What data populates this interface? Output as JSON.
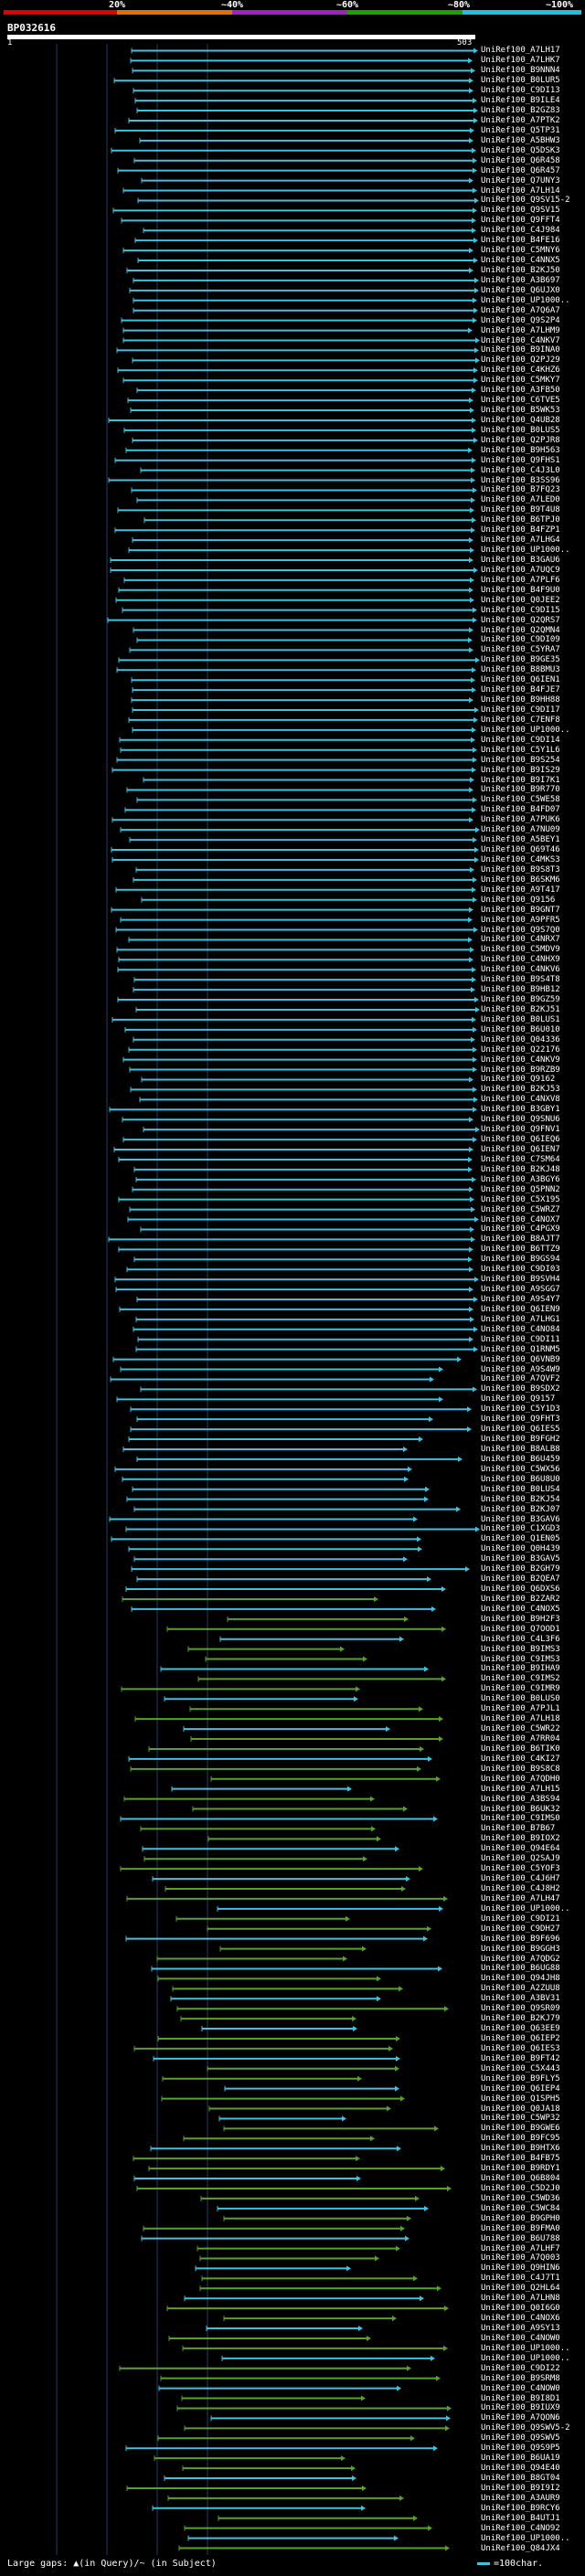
{
  "scale_bar": {
    "ticks": [
      "20%",
      "~40%",
      "~60%",
      "~80%",
      "~100%"
    ],
    "colors": [
      "#e00000",
      "#e07000",
      "#a020c0",
      "#20a000",
      "#20c0e0"
    ]
  },
  "query": {
    "id": "BP032616",
    "start": "1",
    "end": "503"
  },
  "colors": {
    "cyan": "#3fc1e0",
    "green": "#5aa02c",
    "grid": "#2a3a6a",
    "gap": "#ffff66"
  },
  "hits": [
    "UniRef100_A7LH17",
    "UniRef100_A7LHK7",
    "UniRef100_B9NNN4",
    "UniRef100_B0LUR5",
    "UniRef100_C9DI13",
    "UniRef100_B9ILE4",
    "UniRef100_B2GZ83",
    "UniRef100_A7PTK2",
    "UniRef100_Q5TP31",
    "UniRef100_A5BHW3",
    "UniRef100_Q5DSK3",
    "UniRef100_Q6R458",
    "UniRef100_Q6R457",
    "UniRef100_Q7UNY3",
    "UniRef100_A7LH14",
    "UniRef100_Q9SV15-2",
    "UniRef100_Q9SV15",
    "UniRef100_Q9FFT4",
    "UniRef100_C4J984",
    "UniRef100_B4FE16",
    "UniRef100_C5MNY6",
    "UniRef100_C4NNX5",
    "UniRef100_B2KJ50",
    "UniRef100_A3B697",
    "UniRef100_Q6UJX0",
    "UniRef100_UP1000..",
    "UniRef100_A7Q6A7",
    "UniRef100_Q9S2P4",
    "UniRef100_A7LHM9",
    "UniRef100_C4NKV7",
    "UniRef100_B9INA0",
    "UniRef100_Q2PJ29",
    "UniRef100_C4KHZ6",
    "UniRef100_C5MKY7",
    "UniRef100_A3FB50",
    "UniRef100_C6TVE5",
    "UniRef100_B5WK53",
    "UniRef100_Q4UB28",
    "UniRef100_B0LUS5",
    "UniRef100_Q2PJR8",
    "UniRef100_B9H563",
    "UniRef100_Q9FHS1",
    "UniRef100_C4J3L0",
    "UniRef100_B3SS96",
    "UniRef100_B7FQ23",
    "UniRef100_A7LED0",
    "UniRef100_B9T4U8",
    "UniRef100_B6TPJ0",
    "UniRef100_B4FZP1",
    "UniRef100_A7LHG4",
    "UniRef100_UP1000..",
    "UniRef100_B3GAU6",
    "UniRef100_A7UQC9",
    "UniRef100_A7PLF6",
    "UniRef100_B4F9U0",
    "UniRef100_Q0JEE2",
    "UniRef100_C9DI15",
    "UniRef100_Q2QRS7",
    "UniRef100_Q2QMN4",
    "UniRef100_C9DI09",
    "UniRef100_C5YRA7",
    "UniRef100_B9GE35",
    "UniRef100_B8BMU3",
    "UniRef100_Q6IEN1",
    "UniRef100_B4FJE7",
    "UniRef100_B9HH88",
    "UniRef100_C9DI17",
    "UniRef100_C7ENF8",
    "UniRef100_UP1000..",
    "UniRef100_C9DI14",
    "UniRef100_C5Y1L6",
    "UniRef100_B9S254",
    "UniRef100_B9IS29",
    "UniRef100_B9I7K1",
    "UniRef100_B9R770",
    "UniRef100_C5WE58",
    "UniRef100_B4FD07",
    "UniRef100_A7PUK6",
    "UniRef100_A7NU09",
    "UniRef100_A5BEY1",
    "UniRef100_Q69T46",
    "UniRef100_C4MKS3",
    "UniRef100_B9S8T3",
    "UniRef100_B6SKM6",
    "UniRef100_A9T417",
    "UniRef100_Q9156",
    "UniRef100_B9GNT7",
    "UniRef100_A9PFR5",
    "UniRef100_Q9S7Q0",
    "UniRef100_C4NRX7",
    "UniRef100_C5MDV9",
    "UniRef100_C4NHX9",
    "UniRef100_C4NKV6",
    "UniRef100_B9S4T8",
    "UniRef100_B9HB12",
    "UniRef100_B9GZ59",
    "UniRef100_B2KJ51",
    "UniRef100_B0LUS1",
    "UniRef100_B6U010",
    "UniRef100_Q04336",
    "UniRef100_Q22176",
    "UniRef100_C4NKV9",
    "UniRef100_B9RZB9",
    "UniRef100_Q9162",
    "UniRef100_B2KJ53",
    "UniRef100_C4NXV8",
    "UniRef100_B3GBY1",
    "UniRef100_Q9SNU6",
    "UniRef100_Q9FNV1",
    "UniRef100_Q6IEQ6",
    "UniRef100_Q6IEN7",
    "UniRef100_C7SM64",
    "UniRef100_B2KJ48",
    "UniRef100_A3BGY6",
    "UniRef100_Q5PNN2",
    "UniRef100_C5X195",
    "UniRef100_C5WRZ7",
    "UniRef100_C4NOX7",
    "UniRef100_C4PGX9",
    "UniRef100_B8AJT7",
    "UniRef100_B6TTZ9",
    "UniRef100_B9GS94",
    "UniRef100_C9DI03",
    "UniRef100_B9SVH4",
    "UniRef100_A9SGG7",
    "UniRef100_A9S4Y7",
    "UniRef100_Q6IEN9",
    "UniRef100_A7LHG1",
    "UniRef100_C4NO84",
    "UniRef100_C9DI11",
    "UniRef100_Q1RNM5",
    "UniRef100_Q6VNB9",
    "UniRef100_A9S4W9",
    "UniRef100_A7QVF2",
    "UniRef100_B9SDX2",
    "UniRef100_Q9157",
    "UniRef100_C5Y1D3",
    "UniRef100_Q9FHT3",
    "UniRef100_Q6IES5",
    "UniRef100_B9FGH2",
    "UniRef100_B8ALB8",
    "UniRef100_B6U459",
    "UniRef100_C5WX56",
    "UniRef100_B6U8U0",
    "UniRef100_B0LUS4",
    "UniRef100_B2KJ54",
    "UniRef100_B2KJ07",
    "UniRef100_B3GAV6",
    "UniRef100_C1XGD3",
    "UniRef100_Q1EN05",
    "UniRef100_Q0H439",
    "UniRef100_B3GAV5",
    "UniRef100_B2GH79",
    "UniRef100_B2QEA7",
    "UniRef100_Q6DXS6",
    "UniRef100_B2ZAR2",
    "UniRef100_C4NOX5",
    "UniRef100_B9H2F3",
    "UniRef100_Q7OOD1",
    "UniRef100_C4L3F6",
    "UniRef100_B9IMS3",
    "UniRef100_C9IMS3",
    "UniRef100_B9IHA9",
    "UniRef100_C9IMS2",
    "UniRef100_C9IMR9",
    "UniRef100_B0LUS0",
    "UniRef100_A7PJL1",
    "UniRef100_A7LH18",
    "UniRef100_C5WR22",
    "UniRef100_A7RR04",
    "UniRef100_B6TIK0",
    "UniRef100_C4KI27",
    "UniRef100_B9S8C8",
    "UniRef100_A7QDH0",
    "UniRef100_A7LH15",
    "UniRef100_A3BS94",
    "UniRef100_B6UK32",
    "UniRef100_C9IMS0",
    "UniRef100_B7B67",
    "UniRef100_B9IOX2",
    "UniRef100_Q94E64",
    "UniRef100_Q2SAJ9",
    "UniRef100_C5YOF3",
    "UniRef100_C4J6H7",
    "UniRef100_C4J8H2",
    "UniRef100_A7LH47",
    "UniRef100_UP1000..",
    "UniRef100_C9DI21",
    "UniRef100_C9DH27",
    "UniRef100_B9F696",
    "UniRef100_B9GGH3",
    "UniRef100_A7QDG2",
    "UniRef100_B6UG88",
    "UniRef100_Q94JH8",
    "UniRef100_A2ZUU8",
    "UniRef100_A3BV31",
    "UniRef100_Q9SR09",
    "UniRef100_B2KJ79",
    "UniRef100_Q63EE9",
    "UniRef100_Q6IEP2",
    "UniRef100_Q6IES3",
    "UniRef100_B9FT42",
    "UniRef100_C5X443",
    "UniRef100_B9FLY5",
    "UniRef100_Q6IEP4",
    "UniRef100_Q1SPH5",
    "UniRef100_Q0JA18",
    "UniRef100_C5WP32",
    "UniRef100_B9GWE6",
    "UniRef100_B9FC95",
    "UniRef100_B9HTX6",
    "UniRef100_B4FB75",
    "UniRef100_B9RDY1",
    "UniRef100_Q6B804",
    "UniRef100_C5D2J0",
    "UniRef100_C5WD36",
    "UniRef100_C5WC84",
    "UniRef100_B9GPH0",
    "UniRef100_B9FMA0",
    "UniRef100_B6U788",
    "UniRef100_A7LHF7",
    "UniRef100_A7Q003",
    "UniRef100_Q9HIN6",
    "UniRef100_C4J7T1",
    "UniRef100_Q2HL64",
    "UniRef100_A7LHN8",
    "UniRef100_Q0I6G0",
    "UniRef100_C4NOX6",
    "UniRef100_A9SY13",
    "UniRef100_C4NOW0",
    "UniRef100_UP1000..",
    "UniRef100_UP1000..",
    "UniRef100_C9DI22",
    "UniRef100_B9SRM8",
    "UniRef100_C4NOW0",
    "UniRef100_B9I8D1",
    "UniRef100_B9IUX9",
    "UniRef100_A7QON6",
    "UniRef100_Q9SWV5-2",
    "UniRef100_Q9SWV5",
    "UniRef100_Q9S9P5",
    "UniRef100_B6UA19",
    "UniRef100_Q94E40",
    "UniRef100_B8GT04",
    "UniRef100_B9I9I2",
    "UniRef100_A3AUR9",
    "UniRef100_B9RCY6",
    "UniRef100_B4UTJ1",
    "UniRef100_C4NO92",
    "UniRef100_UP1000..",
    "UniRef100_Q84JX4"
  ],
  "legend": {
    "text": "Large gaps: ▲(in Query)/~ (in Subject)",
    "scale": "=100char."
  }
}
